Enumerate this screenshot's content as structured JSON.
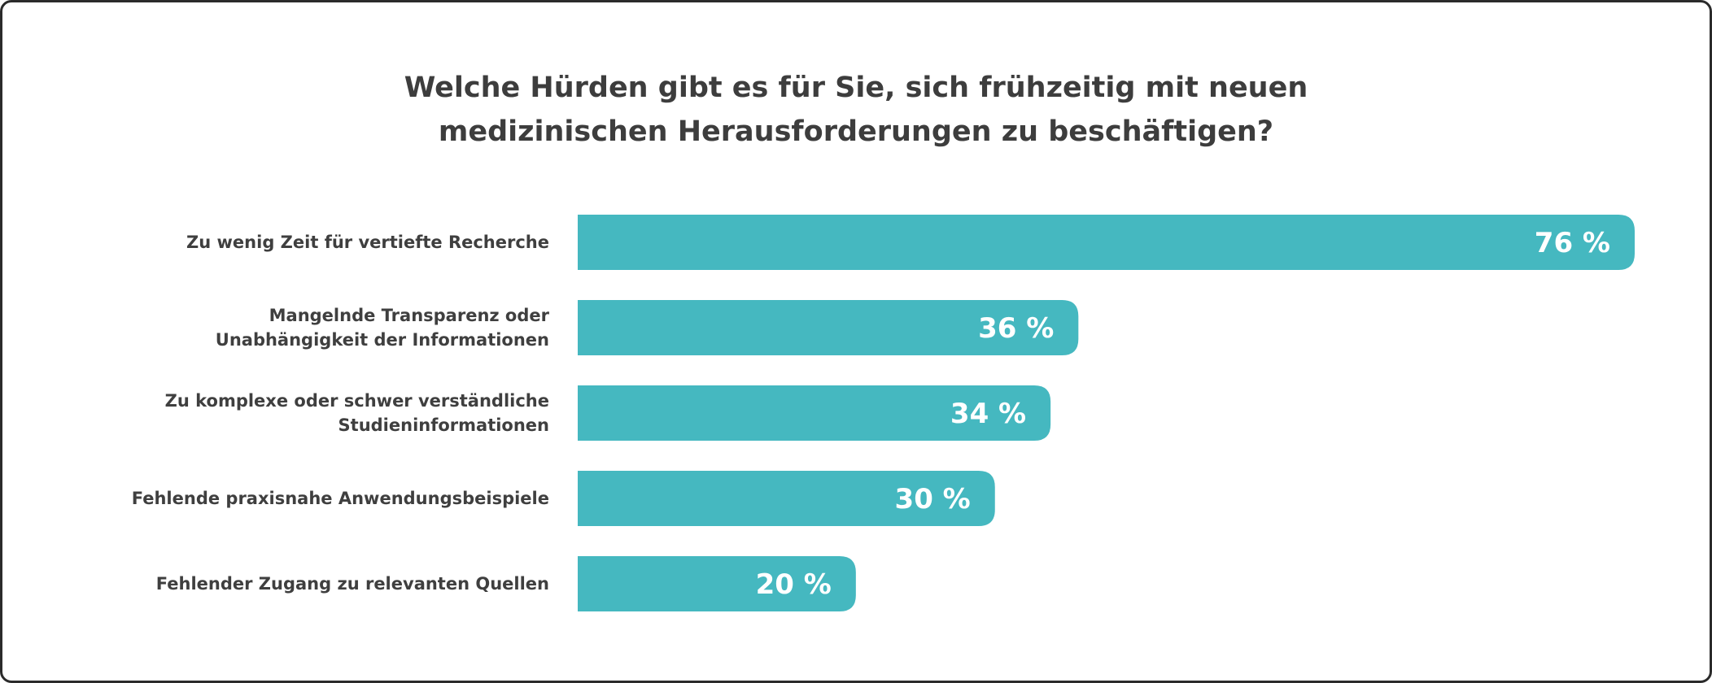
{
  "chart_data": {
    "type": "bar",
    "orientation": "horizontal",
    "title_lines": [
      "Welche Hürden gibt es für Sie, sich frühzeitig mit neuen",
      "medizinischen Herausforderungen zu beschäftigen?"
    ],
    "categories": [
      [
        "Zu wenig Zeit für vertiefte Recherche"
      ],
      [
        "Mangelnde Transparenz oder",
        "Unabhängigkeit der Informationen"
      ],
      [
        "Zu komplexe oder schwer verständliche",
        "Studieninformationen"
      ],
      [
        "Fehlende praxisnahe Anwendungsbeispiele"
      ],
      [
        "Fehlender Zugang zu relevanten Quellen"
      ]
    ],
    "values": [
      76,
      36,
      34,
      30,
      20
    ],
    "value_labels": [
      "76 %",
      "36 %",
      "34 %",
      "30 %",
      "20 %"
    ],
    "unit": "%",
    "xlim": [
      0,
      100
    ],
    "grid": false,
    "legend": "none",
    "bar_color": "#45b8c0",
    "label_color": "#ffffff"
  }
}
